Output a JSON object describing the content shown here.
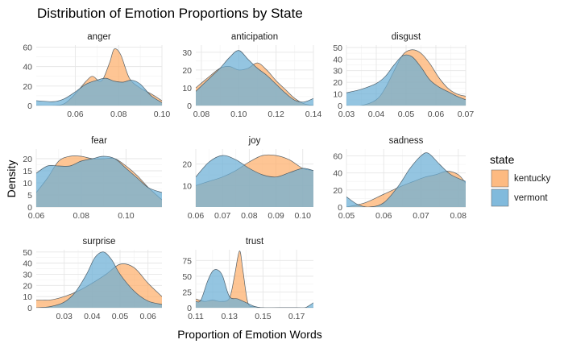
{
  "chart_data": {
    "type": "area",
    "title": "Distribution of Emotion Proportions by State",
    "xlabel": "Proportion of Emotion Words",
    "ylabel": "Density",
    "legend": {
      "title": "state",
      "placement": "right",
      "entries": [
        {
          "label": "kentucky",
          "color": "#fdae6b"
        },
        {
          "label": "vermont",
          "color": "#6baed6"
        }
      ]
    },
    "series_colors": {
      "kentucky": "#fdae6b",
      "vermont": "#6baed6"
    },
    "overlap_color": "#7f8c8d",
    "facets": [
      {
        "name": "anger",
        "xlim": [
          0.042,
          0.1
        ],
        "ylim": [
          0,
          62
        ],
        "xticks": [
          0.06,
          0.08,
          0.1
        ],
        "xtick_labels": [
          "0.06",
          "0.08",
          "0.10"
        ],
        "yticks": [
          0,
          20,
          40,
          60
        ],
        "ytick_labels": [
          "0",
          "20",
          "40",
          "60"
        ],
        "kentucky": {
          "x": [
            0.042,
            0.05,
            0.055,
            0.06,
            0.065,
            0.068,
            0.071,
            0.073,
            0.076,
            0.078,
            0.081,
            0.085,
            0.09,
            0.095,
            0.1
          ],
          "y": [
            0,
            0,
            2,
            12,
            25,
            30,
            25,
            28,
            45,
            58,
            52,
            28,
            18,
            12,
            5
          ]
        },
        "vermont": {
          "x": [
            0.042,
            0.05,
            0.055,
            0.06,
            0.065,
            0.07,
            0.074,
            0.078,
            0.082,
            0.086,
            0.09,
            0.095,
            0.1
          ],
          "y": [
            5,
            4,
            7,
            14,
            22,
            26,
            28,
            25,
            24,
            26,
            22,
            10,
            3
          ]
        }
      },
      {
        "name": "anticipation",
        "xlim": [
          0.077,
          0.14
        ],
        "ylim": [
          0,
          34
        ],
        "xticks": [
          0.08,
          0.1,
          0.12,
          0.14
        ],
        "xtick_labels": [
          "0.08",
          "0.10",
          "0.12",
          "0.14"
        ],
        "yticks": [
          0,
          10,
          20,
          30
        ],
        "ytick_labels": [
          "0",
          "10",
          "20",
          "30"
        ],
        "kentucky": {
          "x": [
            0.077,
            0.085,
            0.09,
            0.095,
            0.1,
            0.105,
            0.11,
            0.115,
            0.12,
            0.125,
            0.13,
            0.135,
            0.14
          ],
          "y": [
            10,
            17,
            21,
            22,
            20,
            21,
            24,
            20,
            14,
            9,
            4,
            1,
            0
          ]
        },
        "vermont": {
          "x": [
            0.077,
            0.085,
            0.09,
            0.095,
            0.1,
            0.105,
            0.11,
            0.115,
            0.12,
            0.125,
            0.13,
            0.135,
            0.14
          ],
          "y": [
            8,
            16,
            21,
            27,
            31,
            26,
            21,
            17,
            12,
            7,
            3,
            2,
            4
          ]
        }
      },
      {
        "name": "disgust",
        "xlim": [
          0.03,
          0.07
        ],
        "ylim": [
          0,
          52
        ],
        "xticks": [
          0.03,
          0.04,
          0.05,
          0.06,
          0.07
        ],
        "xtick_labels": [
          "0.03",
          "0.04",
          "0.05",
          "0.06",
          "0.07"
        ],
        "yticks": [
          0,
          10,
          20,
          30,
          40,
          50
        ],
        "ytick_labels": [
          "0",
          "10",
          "20",
          "30",
          "40",
          "50"
        ],
        "kentucky": {
          "x": [
            0.03,
            0.035,
            0.04,
            0.043,
            0.046,
            0.049,
            0.052,
            0.055,
            0.058,
            0.061,
            0.064,
            0.067,
            0.07
          ],
          "y": [
            0,
            0,
            5,
            15,
            30,
            44,
            48,
            45,
            36,
            24,
            15,
            10,
            8
          ]
        },
        "vermont": {
          "x": [
            0.03,
            0.035,
            0.04,
            0.043,
            0.046,
            0.049,
            0.052,
            0.055,
            0.058,
            0.061,
            0.064,
            0.067,
            0.07
          ],
          "y": [
            11,
            14,
            19,
            25,
            35,
            43,
            42,
            33,
            22,
            16,
            12,
            8,
            5
          ]
        }
      },
      {
        "name": "fear",
        "xlim": [
          0.06,
          0.116
        ],
        "ylim": [
          0,
          24
        ],
        "xticks": [
          0.06,
          0.08,
          0.1
        ],
        "xtick_labels": [
          "0.06",
          "0.08",
          "0.10"
        ],
        "yticks": [
          0,
          5,
          10,
          15,
          20
        ],
        "ytick_labels": [
          "0",
          "5",
          "10",
          "15",
          "20"
        ],
        "kentucky": {
          "x": [
            0.06,
            0.065,
            0.07,
            0.075,
            0.08,
            0.085,
            0.09,
            0.095,
            0.1,
            0.105,
            0.11,
            0.116
          ],
          "y": [
            6,
            12,
            19,
            21,
            21,
            20,
            20,
            20,
            17,
            13,
            8,
            3
          ]
        },
        "vermont": {
          "x": [
            0.06,
            0.065,
            0.07,
            0.075,
            0.08,
            0.085,
            0.09,
            0.095,
            0.1,
            0.105,
            0.11,
            0.116
          ],
          "y": [
            14,
            17,
            17,
            17,
            19,
            20,
            21,
            20,
            16,
            12,
            8,
            6
          ]
        }
      },
      {
        "name": "joy",
        "xlim": [
          0.06,
          0.104
        ],
        "ylim": [
          0,
          27
        ],
        "xticks": [
          0.06,
          0.07,
          0.08,
          0.09,
          0.1
        ],
        "xtick_labels": [
          "0.06",
          "0.07",
          "0.08",
          "0.09",
          "0.10"
        ],
        "yticks": [
          10,
          20
        ],
        "ytick_labels": [
          "10",
          "20"
        ],
        "kentucky": {
          "x": [
            0.06,
            0.065,
            0.07,
            0.075,
            0.08,
            0.085,
            0.09,
            0.095,
            0.1,
            0.104
          ],
          "y": [
            10,
            12,
            14,
            17,
            21,
            24,
            24,
            22,
            18,
            17
          ]
        },
        "vermont": {
          "x": [
            0.06,
            0.065,
            0.07,
            0.075,
            0.08,
            0.085,
            0.09,
            0.095,
            0.1,
            0.104
          ],
          "y": [
            14,
            21,
            24,
            22,
            18,
            15,
            14,
            16,
            18,
            17
          ]
        }
      },
      {
        "name": "sadness",
        "xlim": [
          0.05,
          0.082
        ],
        "ylim": [
          0,
          68
        ],
        "xticks": [
          0.05,
          0.06,
          0.07,
          0.08
        ],
        "xtick_labels": [
          "0.05",
          "0.06",
          "0.07",
          "0.08"
        ],
        "yticks": [
          0,
          20,
          40,
          60
        ],
        "ytick_labels": [
          "0",
          "20",
          "40",
          "60"
        ],
        "kentucky": {
          "x": [
            0.05,
            0.055,
            0.06,
            0.065,
            0.068,
            0.071,
            0.074,
            0.077,
            0.08,
            0.082
          ],
          "y": [
            0,
            5,
            15,
            25,
            30,
            35,
            38,
            42,
            38,
            28
          ]
        },
        "vermont": {
          "x": [
            0.05,
            0.053,
            0.056,
            0.06,
            0.064,
            0.067,
            0.07,
            0.072,
            0.075,
            0.078,
            0.082
          ],
          "y": [
            12,
            3,
            0,
            5,
            25,
            45,
            60,
            63,
            50,
            38,
            30
          ]
        }
      },
      {
        "name": "surprise",
        "xlim": [
          0.02,
          0.065
        ],
        "ylim": [
          0,
          52
        ],
        "xticks": [
          0.03,
          0.04,
          0.05,
          0.06
        ],
        "xtick_labels": [
          "0.03",
          "0.04",
          "0.05",
          "0.06"
        ],
        "yticks": [
          0,
          10,
          20,
          30,
          40,
          50
        ],
        "ytick_labels": [
          "0",
          "10",
          "20",
          "30",
          "40",
          "50"
        ],
        "kentucky": {
          "x": [
            0.02,
            0.025,
            0.03,
            0.035,
            0.04,
            0.045,
            0.05,
            0.055,
            0.06,
            0.065
          ],
          "y": [
            7,
            7,
            10,
            15,
            22,
            30,
            39,
            36,
            22,
            10
          ]
        },
        "vermont": {
          "x": [
            0.02,
            0.025,
            0.03,
            0.034,
            0.038,
            0.041,
            0.044,
            0.047,
            0.05,
            0.055,
            0.06,
            0.065
          ],
          "y": [
            0,
            1,
            5,
            14,
            30,
            45,
            50,
            43,
            30,
            15,
            6,
            3
          ]
        }
      },
      {
        "name": "trust",
        "xlim": [
          0.11,
          0.18
        ],
        "ylim": [
          0,
          92
        ],
        "xticks": [
          0.11,
          0.13,
          0.15,
          0.17
        ],
        "xtick_labels": [
          "0.11",
          "0.13",
          "0.15",
          "0.17"
        ],
        "yticks": [
          0,
          25,
          50,
          75
        ],
        "ytick_labels": [
          "0",
          "25",
          "50",
          "75"
        ],
        "kentucky": {
          "x": [
            0.11,
            0.115,
            0.12,
            0.125,
            0.13,
            0.133,
            0.136,
            0.138,
            0.141,
            0.145,
            0.15,
            0.16,
            0.18
          ],
          "y": [
            14,
            10,
            12,
            10,
            15,
            50,
            90,
            60,
            8,
            2,
            0,
            0,
            0
          ]
        },
        "vermont": {
          "x": [
            0.11,
            0.113,
            0.117,
            0.12,
            0.123,
            0.126,
            0.13,
            0.135,
            0.14,
            0.145,
            0.15,
            0.16,
            0.17,
            0.175,
            0.18
          ],
          "y": [
            10,
            12,
            42,
            58,
            60,
            50,
            18,
            14,
            8,
            2,
            0,
            0,
            0,
            0,
            8
          ]
        }
      }
    ]
  }
}
